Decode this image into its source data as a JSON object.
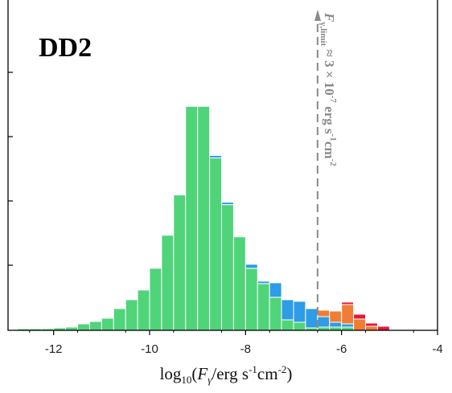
{
  "chart_data": {
    "type": "bar",
    "stacked": true,
    "panel_label": "DD2",
    "x_tick_labels": [
      "-12",
      "-10",
      "-8",
      "-6",
      "-4"
    ],
    "x_ticks": [
      -12,
      -10,
      -8,
      -6,
      -4
    ],
    "xlim": [
      -12.95,
      -4.0
    ],
    "ylim": [
      0,
      410
    ],
    "bin_width": 0.25,
    "xlabel_parts": {
      "a": "log",
      "b": "10",
      "c": "(",
      "d": "F",
      "e": "γ",
      "f": "/erg s",
      "g": "-1",
      "h": "cm",
      "i": "-2",
      "j": ")"
    },
    "limit": {
      "x": -6.5,
      "parts": {
        "a": "F",
        "b": "γ,limit",
        "c": " ≈ 3 × 10",
        "d": "-7",
        "e": " erg s",
        "f": "-1",
        "g": "cm",
        "h": "-2"
      }
    },
    "bin_left_edges": [
      -12.75,
      -12.5,
      -12.25,
      -12.0,
      -11.75,
      -11.5,
      -11.25,
      -11.0,
      -10.75,
      -10.5,
      -10.25,
      -10.0,
      -9.75,
      -9.5,
      -9.25,
      -9.0,
      -8.75,
      -8.5,
      -8.25,
      -8.0,
      -7.75,
      -7.5,
      -7.25,
      -7.0,
      -6.75,
      -6.5,
      -6.25,
      -6.0,
      -5.75,
      -5.5,
      -5.25
    ],
    "series": [
      {
        "color": "#4fd47a",
        "values": [
          2,
          2,
          2,
          3,
          4,
          8,
          11,
          15,
          27,
          38,
          50,
          77,
          118,
          168,
          278,
          278,
          214,
          156,
          116,
          77,
          58,
          41,
          13,
          10,
          3,
          4,
          4,
          4,
          0,
          0,
          0
        ]
      },
      {
        "color": "#2e9ce6",
        "values": [
          0,
          0,
          0,
          0,
          0,
          0,
          0,
          0,
          0,
          0,
          0,
          0,
          0,
          0,
          0,
          0,
          3,
          3,
          0,
          5,
          3,
          18,
          25,
          26,
          24,
          13,
          6,
          4,
          0,
          0,
          0
        ]
      },
      {
        "color": "#f07d35",
        "values": [
          0,
          0,
          0,
          0,
          0,
          0,
          0,
          0,
          0,
          0,
          0,
          0,
          0,
          0,
          0,
          0,
          0,
          0,
          0,
          0,
          0,
          0,
          0,
          0,
          0,
          8,
          14,
          24,
          14,
          5,
          0
        ]
      },
      {
        "color": "#e8173c",
        "values": [
          0,
          0,
          0,
          0,
          0,
          0,
          0,
          0,
          0,
          0,
          0,
          0,
          0,
          0,
          0,
          0,
          0,
          0,
          0,
          0,
          0,
          0,
          0,
          0,
          1,
          0,
          1,
          3,
          6,
          4,
          5
        ]
      }
    ]
  }
}
